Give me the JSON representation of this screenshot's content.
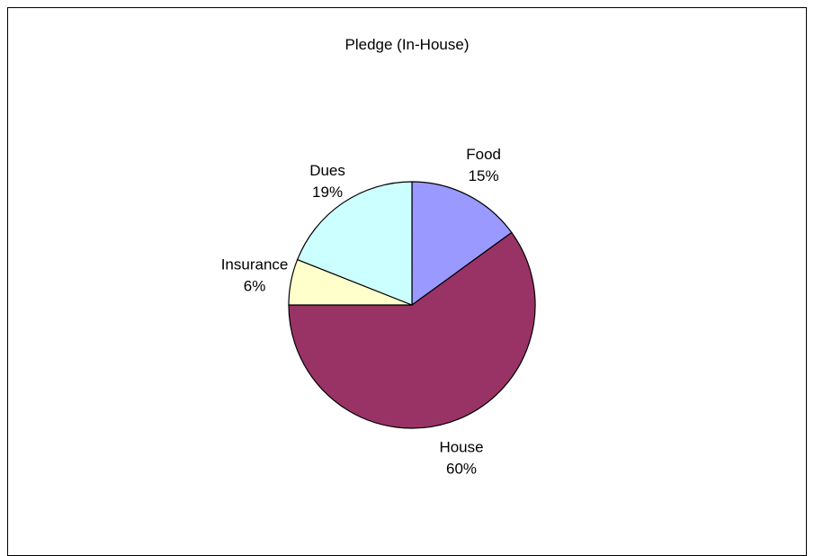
{
  "chart_data": {
    "type": "pie",
    "title": "Pledge (In-House)",
    "categories": [
      "Food",
      "House",
      "Insurance",
      "Dues"
    ],
    "values": [
      15,
      60,
      6,
      19
    ],
    "labels": [
      "15%",
      "60%",
      "6%",
      "19%"
    ],
    "colors": [
      "#9999ff",
      "#993366",
      "#ffffcc",
      "#ccffff"
    ],
    "start_angle_deg": 0,
    "direction": "clockwise",
    "legend": "none"
  }
}
